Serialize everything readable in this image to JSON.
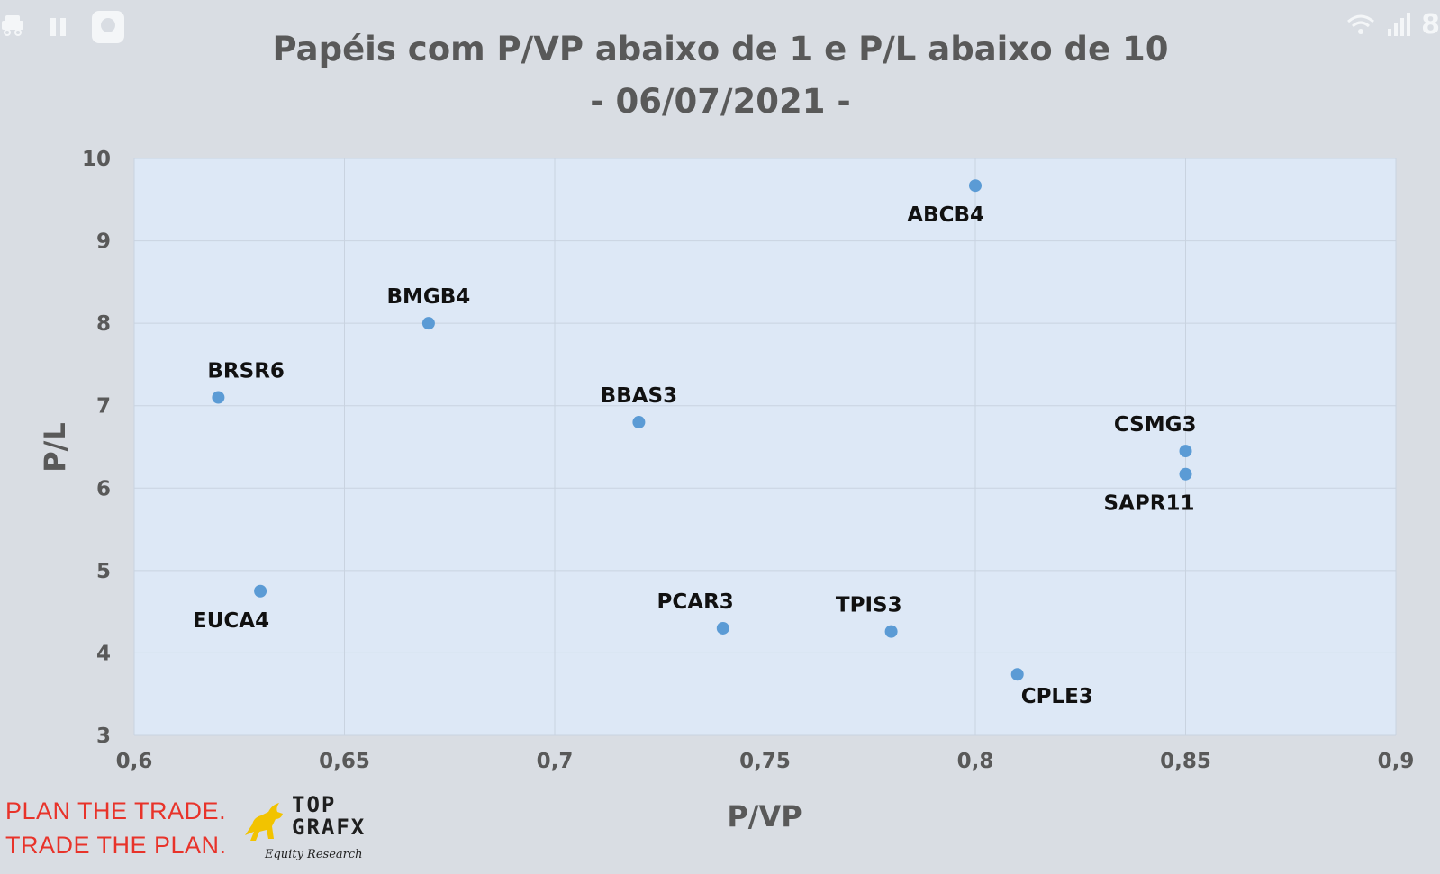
{
  "status_bar": {
    "left_icons": [
      "car-icon",
      "pause-icon",
      "app-icon"
    ],
    "right_icons": [
      "wifi-icon",
      "signal-icon"
    ],
    "right_text": "8"
  },
  "colors": {
    "background": "#d9dde3",
    "plot_area": "#dde8f6",
    "grid": "#c9d3e0",
    "marker": "#5b9bd5",
    "text": "#595959",
    "label": "#111111",
    "slogan": "#e8332a",
    "logo": "#f2c300"
  },
  "chart_data": {
    "type": "scatter",
    "title": "Papéis com P/VP abaixo de 1 e P/L abaixo de 10",
    "subtitle": "- 06/07/2021 -",
    "xlabel": "P/VP",
    "ylabel": "P/L",
    "xlim": [
      0.6,
      0.9
    ],
    "ylim": [
      3,
      10
    ],
    "x_ticks": [
      "0,6",
      "0,65",
      "0,7",
      "0,75",
      "0,8",
      "0,85",
      "0,9"
    ],
    "y_ticks": [
      "3",
      "4",
      "5",
      "6",
      "7",
      "8",
      "9",
      "10"
    ],
    "grid": true,
    "legend": "none",
    "points": [
      {
        "label": "ABCB4",
        "x": 0.8,
        "y": 9.67,
        "label_pos": "below-left"
      },
      {
        "label": "BMGB4",
        "x": 0.67,
        "y": 8.0,
        "label_pos": "above"
      },
      {
        "label": "BRSR6",
        "x": 0.62,
        "y": 7.1,
        "label_pos": "above-right"
      },
      {
        "label": "BBAS3",
        "x": 0.72,
        "y": 6.8,
        "label_pos": "above"
      },
      {
        "label": "CSMG3",
        "x": 0.85,
        "y": 6.45,
        "label_pos": "above-left"
      },
      {
        "label": "SAPR11",
        "x": 0.85,
        "y": 6.17,
        "label_pos": "below-left"
      },
      {
        "label": "EUCA4",
        "x": 0.63,
        "y": 4.75,
        "label_pos": "below-left"
      },
      {
        "label": "PCAR3",
        "x": 0.74,
        "y": 4.3,
        "label_pos": "above-left"
      },
      {
        "label": "TPIS3",
        "x": 0.78,
        "y": 4.26,
        "label_pos": "above-left"
      },
      {
        "label": "CPLE3",
        "x": 0.81,
        "y": 3.74,
        "label_pos": "below-right"
      }
    ]
  },
  "branding": {
    "slogan_line1": "PLAN THE TRADE.",
    "slogan_line2": "TRADE THE PLAN.",
    "logo_icon": "bull-icon",
    "name_line1": "TOP",
    "name_line2": "GRAFX",
    "tagline": "Equity Research"
  }
}
